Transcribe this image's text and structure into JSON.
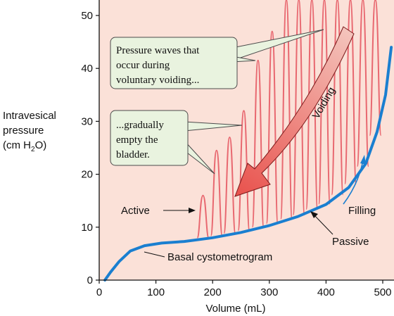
{
  "chart_data": {
    "type": "line",
    "title": "",
    "xlabel": "Volume (mL)",
    "ylabel": {
      "line1": "Intravesical",
      "line2": "pressure",
      "line3_pre": "(cm H",
      "line3_sub": "2",
      "line3_post": "O)"
    },
    "xlim": [
      0,
      520
    ],
    "ylim": [
      0,
      53
    ],
    "x_ticks": [
      0,
      100,
      200,
      300,
      400,
      500
    ],
    "y_ticks": [
      0,
      10,
      20,
      30,
      40,
      50
    ],
    "series": [
      {
        "name": "Basal cystometrogram",
        "color": "#1a7fd0",
        "points": [
          [
            10,
            0
          ],
          [
            20,
            1.5
          ],
          [
            35,
            3.5
          ],
          [
            55,
            5.5
          ],
          [
            80,
            6.5
          ],
          [
            110,
            7.0
          ],
          [
            150,
            7.3
          ],
          [
            200,
            8.0
          ],
          [
            250,
            9.0
          ],
          [
            300,
            10.3
          ],
          [
            350,
            12.0
          ],
          [
            400,
            14.3
          ],
          [
            440,
            17.5
          ],
          [
            470,
            22.0
          ],
          [
            490,
            28.0
          ],
          [
            505,
            35.0
          ],
          [
            515,
            44.0
          ]
        ]
      }
    ],
    "pressure_waves": {
      "color": "#e86870",
      "peaks": [
        {
          "x": 183,
          "y": 16
        },
        {
          "x": 207,
          "y": 24.5
        },
        {
          "x": 230,
          "y": 27
        },
        {
          "x": 255,
          "y": 32
        },
        {
          "x": 280,
          "y": 41.5
        },
        {
          "x": 305,
          "y": 47
        },
        {
          "x": 330,
          "y": 53
        },
        {
          "x": 352,
          "y": 53
        },
        {
          "x": 375,
          "y": 53
        },
        {
          "x": 397,
          "y": 53
        },
        {
          "x": 420,
          "y": 53
        },
        {
          "x": 443,
          "y": 53
        },
        {
          "x": 465,
          "y": 53
        },
        {
          "x": 487,
          "y": 53
        }
      ]
    },
    "annotations": {
      "active": "Active",
      "passive": "Passive",
      "filling": "Filling",
      "voiding": "Voiding",
      "basal": "Basal cystometrogram",
      "callout1": [
        "Pressure waves that",
        "occur during",
        "voluntary voiding..."
      ],
      "callout2": [
        "...gradually",
        "empty the",
        "bladder."
      ]
    },
    "grid": false,
    "legend": "none"
  },
  "colors": {
    "plot_background": "#fbe1d8",
    "axis": "#111111",
    "callout_fill": "#e9f3df",
    "callout_stroke": "#4b4b4b",
    "arrow_start": "#f4c4bc",
    "arrow_end": "#e8514c"
  }
}
